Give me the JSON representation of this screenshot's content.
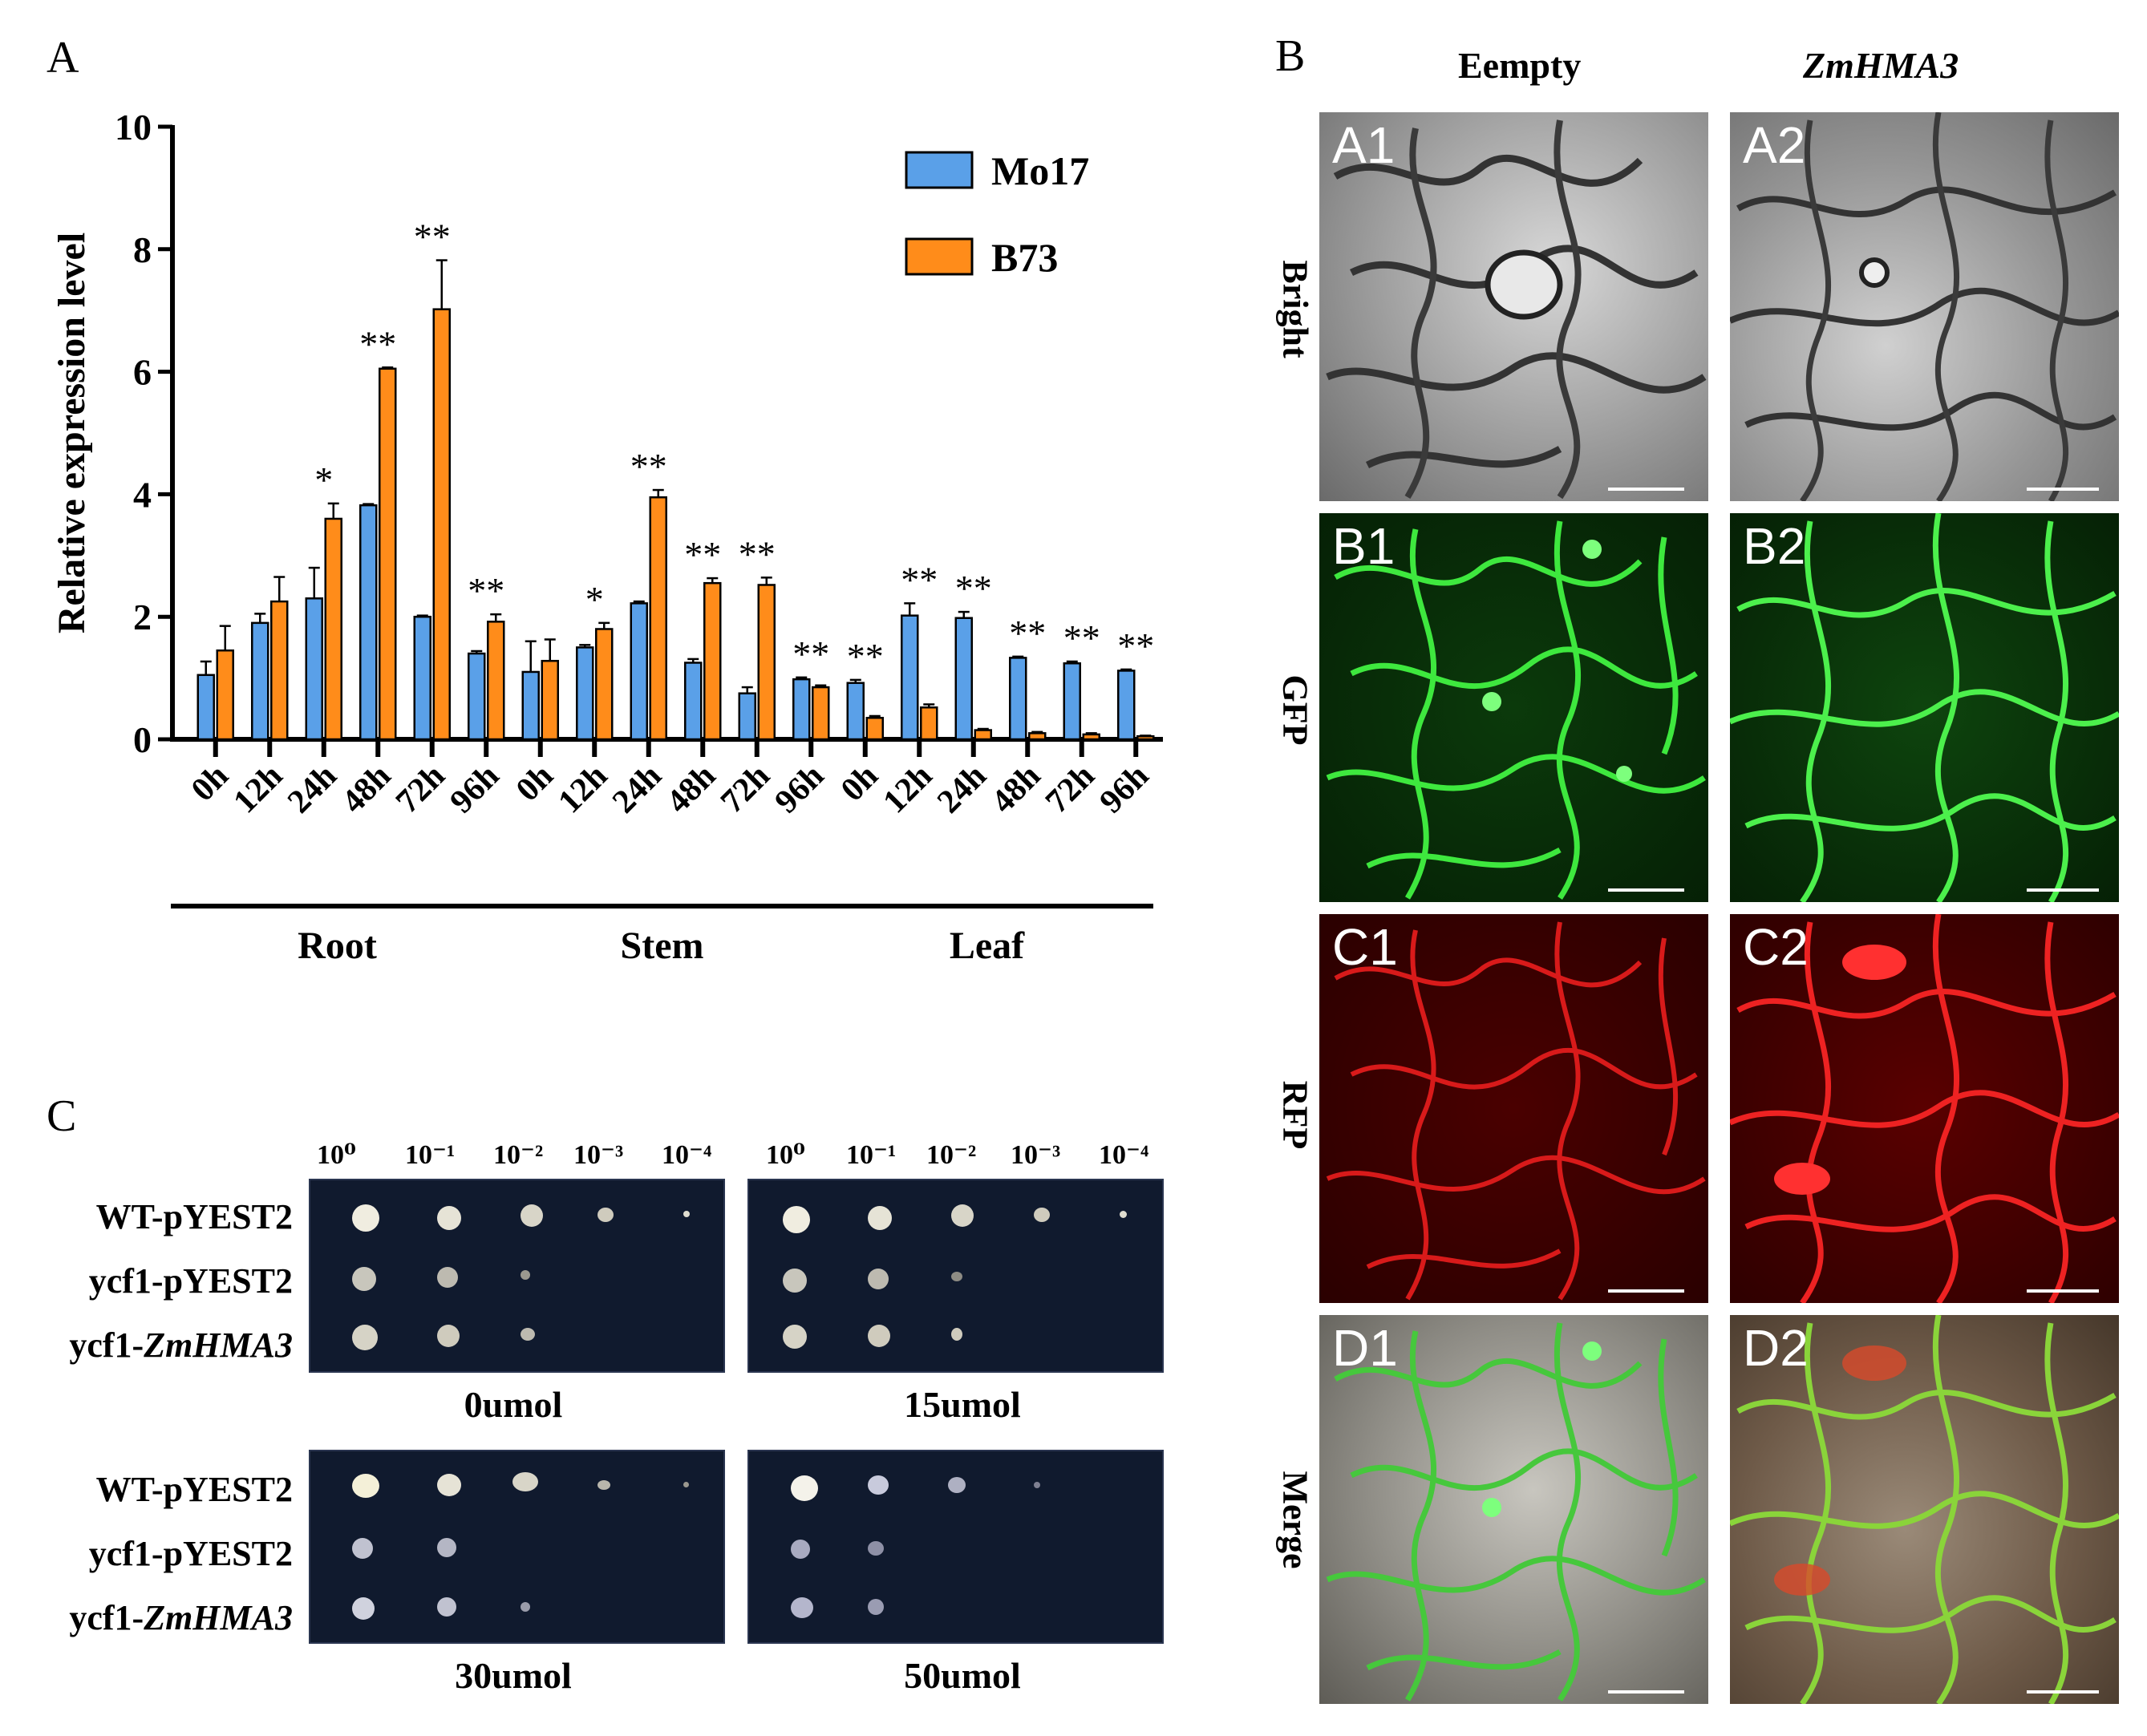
{
  "panels": {
    "A": "A",
    "B": "B",
    "C": "C"
  },
  "chart_data": {
    "type": "bar",
    "ylabel": "Relative expression level",
    "ylim": [
      0,
      10
    ],
    "yticks": [
      "0",
      "2",
      "4",
      "6",
      "8",
      "10"
    ],
    "categories": [
      "0h",
      "12h",
      "24h",
      "48h",
      "72h",
      "96h",
      "0h",
      "12h",
      "24h",
      "48h",
      "72h",
      "96h",
      "0h",
      "12h",
      "24h",
      "48h",
      "72h",
      "96h"
    ],
    "groups": [
      {
        "label": "Root",
        "start": 0,
        "end": 5
      },
      {
        "label": "Stem",
        "start": 6,
        "end": 11
      },
      {
        "label": "Leaf",
        "start": 12,
        "end": 17
      }
    ],
    "series": [
      {
        "name": "Mo17",
        "color": "#5aa0e8",
        "values": [
          1.05,
          1.9,
          2.3,
          3.82,
          2.0,
          1.4,
          1.1,
          1.5,
          2.22,
          1.25,
          0.75,
          0.98,
          0.92,
          2.02,
          1.98,
          1.33,
          1.24,
          1.12
        ],
        "errors": [
          0.22,
          0.15,
          0.5,
          0.02,
          0.02,
          0.04,
          0.5,
          0.04,
          0.03,
          0.06,
          0.1,
          0.03,
          0.05,
          0.2,
          0.1,
          0.02,
          0.03,
          0.02
        ]
      },
      {
        "name": "B73",
        "color": "#ff8c1a",
        "values": [
          1.45,
          2.25,
          3.6,
          6.05,
          7.02,
          1.92,
          1.28,
          1.8,
          3.95,
          2.55,
          2.52,
          0.85,
          0.35,
          0.52,
          0.15,
          0.1,
          0.08,
          0.05
        ],
        "errors": [
          0.4,
          0.4,
          0.25,
          0.02,
          0.8,
          0.12,
          0.35,
          0.1,
          0.12,
          0.08,
          0.12,
          0.03,
          0.03,
          0.05,
          0.02,
          0.02,
          0.02,
          0.01
        ]
      }
    ],
    "annotations": [
      "",
      "",
      "*",
      "**",
      "**",
      "**",
      "",
      "*",
      "**",
      "**",
      "**",
      "**",
      "**",
      "**",
      "**",
      "**",
      "**",
      "**"
    ]
  },
  "panelB": {
    "columns": [
      "Eempty",
      "ZmHMA3"
    ],
    "rows": [
      "Bright",
      "GFP",
      "RFP",
      "Merge"
    ],
    "tags": [
      [
        "A1",
        "A2"
      ],
      [
        "B1",
        "B2"
      ],
      [
        "C1",
        "C2"
      ],
      [
        "D1",
        "D2"
      ]
    ]
  },
  "panelC": {
    "dilutions": [
      "10⁰",
      "10⁻¹",
      "10⁻²",
      "10⁻³",
      "10⁻⁴"
    ],
    "strains": [
      [
        "WT-pYEST2"
      ],
      [
        "ycf1-pYEST2"
      ],
      [
        "ycf1-",
        "ZmHMA3"
      ]
    ],
    "conditions": [
      "0umol",
      "15umol",
      "30umol",
      "50umol"
    ]
  }
}
